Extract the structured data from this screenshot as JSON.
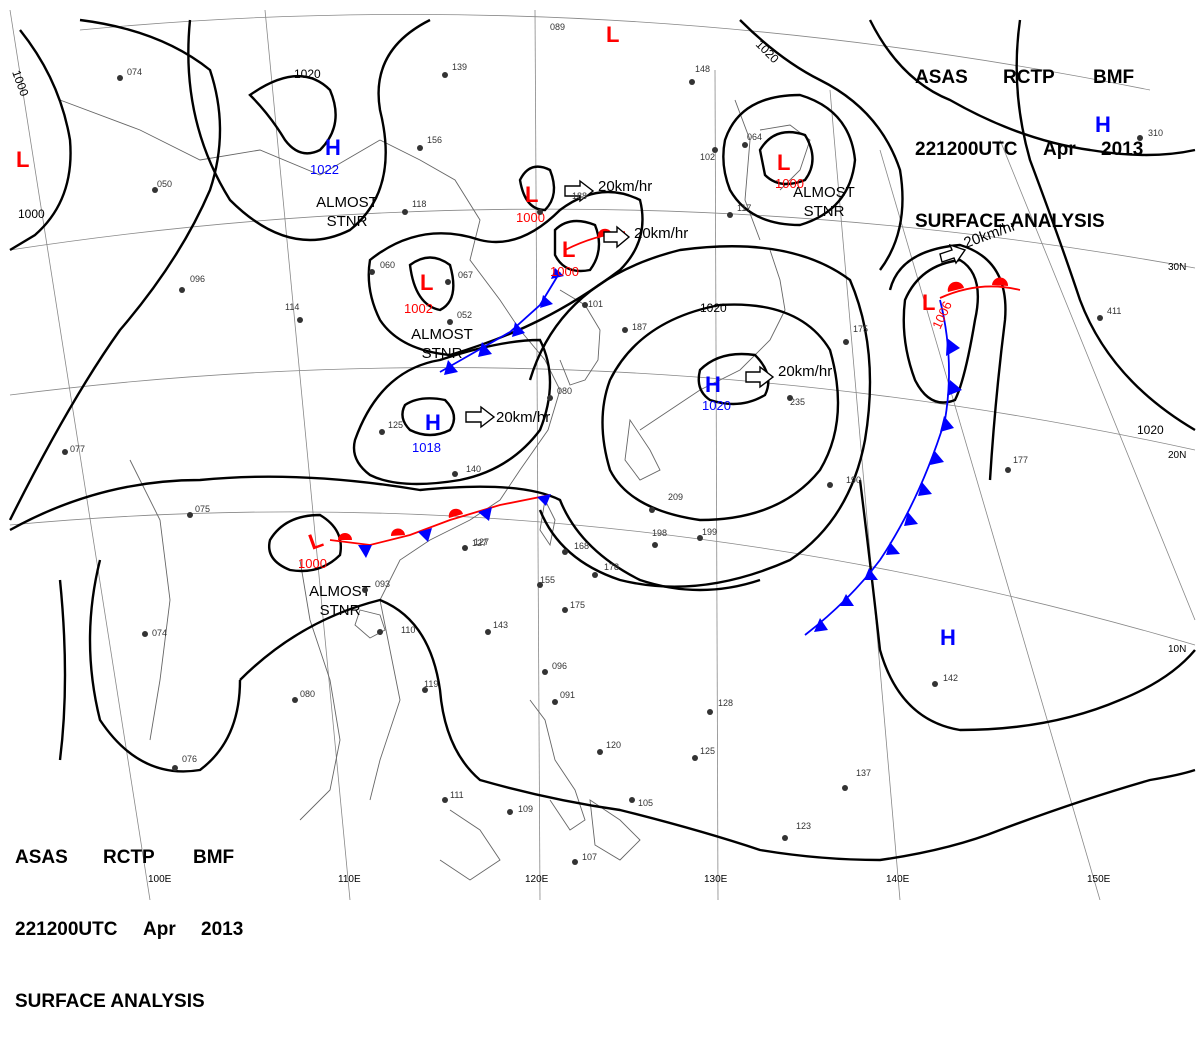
{
  "header": {
    "line1": [
      "ASAS",
      "RCTP",
      "BMF"
    ],
    "line2": [
      "221200UTC",
      "Apr",
      "2013"
    ],
    "line3": "SURFACE ANALYSIS"
  },
  "colors": {
    "high": "#0000ff",
    "low": "#ff0000",
    "isobar": "#000000",
    "grid": "#888888",
    "coast": "#555555"
  },
  "longitude_labels": [
    "100E",
    "110E",
    "120E",
    "130E",
    "140E",
    "150E"
  ],
  "latitude_labels": [
    "30N",
    "20N",
    "10N"
  ],
  "isobar_labels": [
    "1000",
    "1020",
    "1020",
    "1000",
    "1020",
    "1020"
  ],
  "pressure_centers": [
    {
      "type": "L",
      "value": ""
    },
    {
      "type": "H",
      "value": "1022"
    },
    {
      "type": "L",
      "value": "1000"
    },
    {
      "type": "L",
      "value": "1000"
    },
    {
      "type": "L",
      "value": "1002"
    },
    {
      "type": "L",
      "value": "1000"
    },
    {
      "type": "L",
      "value": "1006"
    },
    {
      "type": "H",
      "value": "1020"
    },
    {
      "type": "H",
      "value": "1018"
    },
    {
      "type": "L",
      "value": "1000"
    },
    {
      "type": "L",
      "value": ""
    },
    {
      "type": "H",
      "value": ""
    },
    {
      "type": "H",
      "value": ""
    }
  ],
  "motion_labels": [
    "20km/hr",
    "20km/hr",
    "20km/hr",
    "20km/hr",
    "20km/hr"
  ],
  "stationary_labels": [
    {
      "l1": "ALMOST",
      "l2": "STNR"
    },
    {
      "l1": "ALMOST",
      "l2": "STNR"
    },
    {
      "l1": "ALMOST",
      "l2": "STNR"
    },
    {
      "l1": "ALMOST",
      "l2": "STNR"
    }
  ],
  "station_values": [
    "089",
    "139",
    "156",
    "118",
    "060",
    "067",
    "052",
    "127",
    "125",
    "140",
    "127",
    "168",
    "178",
    "155",
    "175",
    "143",
    "110",
    "093",
    "119",
    "080",
    "096",
    "091",
    "120",
    "105",
    "109",
    "107",
    "111",
    "076",
    "074",
    "075",
    "077",
    "114",
    "096",
    "050",
    "074",
    "209",
    "199",
    "198",
    "190",
    "177",
    "142",
    "128",
    "125",
    "123",
    "137",
    "411",
    "310",
    "235",
    "175",
    "148",
    "102",
    "117",
    "064",
    "101",
    "080",
    "187",
    "188"
  ]
}
